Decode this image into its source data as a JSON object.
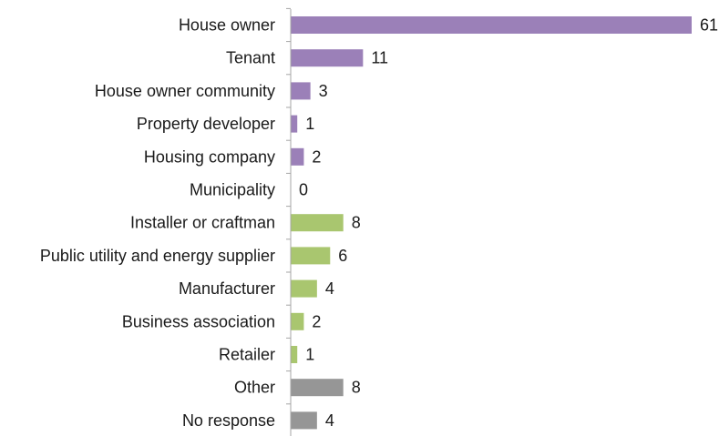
{
  "colors": {
    "purple": "#9b80b8",
    "green": "#a9c66f",
    "gray": "#969696",
    "axis": "#a6a6a6"
  },
  "chart_data": {
    "type": "bar",
    "orientation": "horizontal",
    "title": "",
    "xlabel": "",
    "ylabel": "",
    "xlim": [
      0,
      61
    ],
    "grid": false,
    "legend": "none",
    "categories": [
      "House owner",
      "Tenant",
      "House owner community",
      "Property developer",
      "Housing company",
      "Municipality",
      "Installer or craftman",
      "Public utility and energy supplier",
      "Manufacturer",
      "Business association",
      "Retailer",
      "Other",
      "No response"
    ],
    "values": [
      61,
      11,
      3,
      1,
      2,
      0,
      8,
      6,
      4,
      2,
      1,
      8,
      4
    ],
    "bar_colors": [
      "purple",
      "purple",
      "purple",
      "purple",
      "purple",
      "purple",
      "green",
      "green",
      "green",
      "green",
      "green",
      "gray",
      "gray"
    ]
  }
}
